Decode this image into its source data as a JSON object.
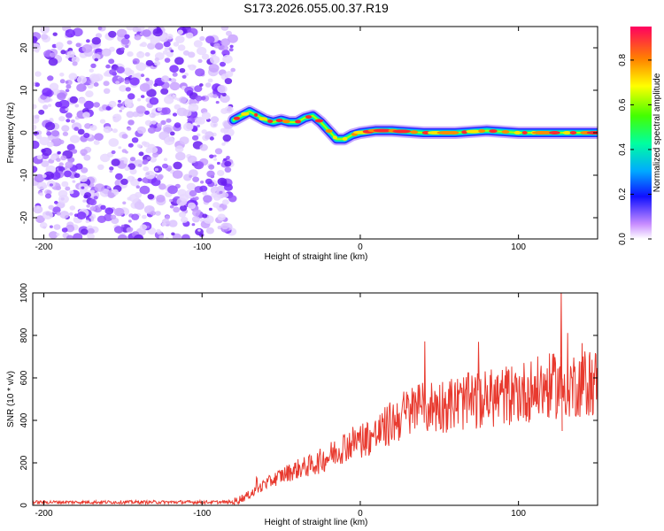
{
  "title": "S173.2026.055.00.37.R19",
  "chart_data": [
    {
      "type": "heatmap",
      "xlabel": "Height of straight line (km)",
      "ylabel": "Frequency (Hz)",
      "xlim": [
        -207,
        150
      ],
      "ylim": [
        -25,
        25
      ],
      "xticks": [
        -200,
        -100,
        0,
        100
      ],
      "yticks": [
        -20,
        -10,
        0,
        10,
        20
      ],
      "noise_region_x": [
        -207,
        -80
      ],
      "ridge": {
        "x": [
          -80,
          -75,
          -70,
          -65,
          -60,
          -55,
          -50,
          -45,
          -40,
          -35,
          -30,
          -25,
          -20,
          -15,
          -10,
          -5,
          0,
          10,
          20,
          40,
          60,
          80,
          100,
          120,
          150
        ],
        "freq": [
          3,
          4,
          5,
          4,
          3,
          2.5,
          3,
          2.5,
          2.5,
          3.5,
          4,
          2.5,
          0.5,
          -1.5,
          -1.5,
          -0.5,
          0,
          0.5,
          0.5,
          0,
          0,
          0.5,
          0,
          0,
          0
        ]
      }
    },
    {
      "type": "colorbar",
      "label": "Normalized spectral amplitude",
      "range": [
        0,
        0.95
      ],
      "ticks": [
        0.0,
        0.2,
        0.4,
        0.6,
        0.8
      ]
    },
    {
      "type": "line",
      "xlabel": "Height of straight line (km)",
      "ylabel": "SNR (10 * v/v)",
      "xlim": [
        -207,
        150
      ],
      "ylim": [
        0,
        1000
      ],
      "xticks": [
        -200,
        -100,
        0,
        100
      ],
      "yticks": [
        0,
        200,
        400,
        600,
        800,
        1000
      ],
      "color": "#e83a2f",
      "trend": {
        "x": [
          -207,
          -80,
          -70,
          -60,
          -50,
          -40,
          -30,
          -20,
          -10,
          0,
          10,
          20,
          30,
          40,
          60,
          80,
          100,
          120,
          150
        ],
        "y": [
          15,
          15,
          50,
          100,
          140,
          170,
          190,
          230,
          280,
          310,
          330,
          390,
          440,
          460,
          480,
          500,
          530,
          560,
          580
        ]
      }
    }
  ]
}
